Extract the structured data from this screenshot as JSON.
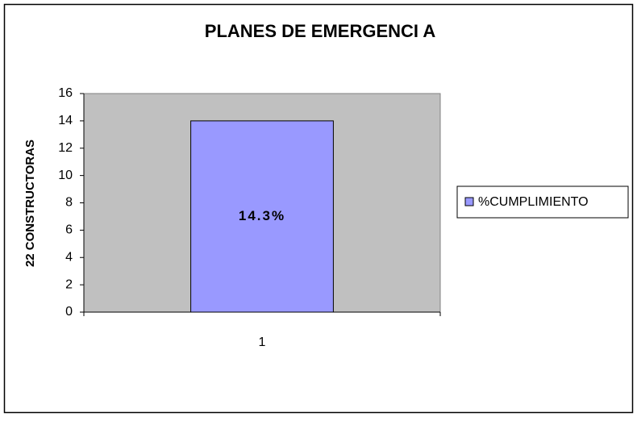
{
  "chart_data": {
    "type": "bar",
    "title": "PLANES DE EMERGENCI A",
    "y_label": "22 CONSTRUCTORAS",
    "categories": [
      "1"
    ],
    "series": [
      {
        "name": "%CUMPLIMIENTO",
        "color": "#9999ff",
        "values": [
          14
        ],
        "value_labels": [
          "14.3%"
        ]
      }
    ],
    "ylim": [
      0,
      16
    ],
    "yticks": [
      0,
      2,
      4,
      6,
      8,
      10,
      12,
      14,
      16
    ],
    "plot_background": "#c0c0c0",
    "legend": "right"
  }
}
